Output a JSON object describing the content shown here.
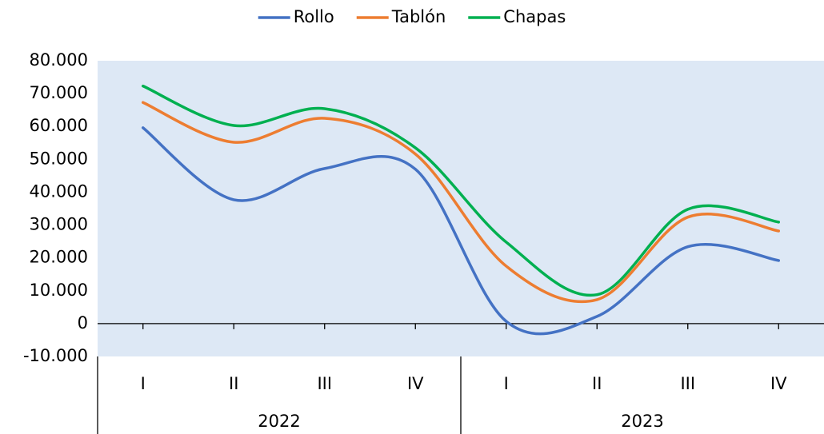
{
  "chart_data": {
    "type": "line",
    "categories": [
      "I",
      "II",
      "III",
      "IV",
      "I",
      "II",
      "III",
      "IV"
    ],
    "category_groups": [
      "2022",
      "2023"
    ],
    "series": [
      {
        "name": "Rollo",
        "color": "#4472c4",
        "values": [
          59600,
          37700,
          47200,
          47000,
          700,
          2200,
          23400,
          19200
        ]
      },
      {
        "name": "Tablón",
        "color": "#ed7d31",
        "values": [
          67300,
          55200,
          62500,
          51600,
          17500,
          7300,
          32400,
          28200
        ]
      },
      {
        "name": "Chapas",
        "color": "#00b050",
        "values": [
          72300,
          60300,
          65400,
          53500,
          24800,
          8800,
          34800,
          30900
        ]
      }
    ],
    "ylim": [
      -10000,
      80000
    ],
    "yticks": [
      {
        "value": -10000,
        "label": "-10.000"
      },
      0,
      {
        "value": 10000,
        "label": "10.000"
      },
      {
        "value": 20000,
        "label": "20.000"
      },
      {
        "value": 30000,
        "label": "30.000"
      },
      {
        "value": 40000,
        "label": "40.000"
      },
      {
        "value": 50000,
        "label": "50.000"
      },
      {
        "value": 60000,
        "label": "60.000"
      },
      {
        "value": 70000,
        "label": "70.000"
      },
      {
        "value": 80000,
        "label": "80.000"
      }
    ],
    "smooth": true,
    "legend": "top",
    "plot_background": "#dde8f5"
  }
}
